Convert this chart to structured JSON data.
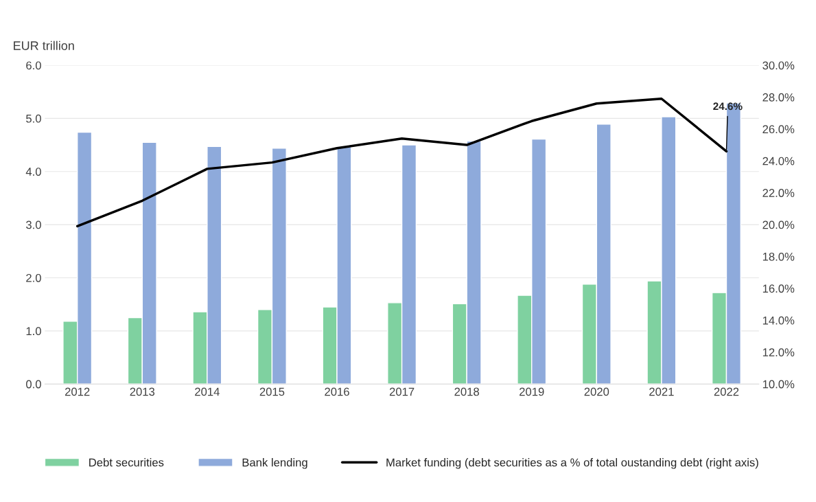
{
  "chart_data": {
    "type": "bar",
    "ylabel": "EUR trillion",
    "categories": [
      "2012",
      "2013",
      "2014",
      "2015",
      "2016",
      "2017",
      "2018",
      "2019",
      "2020",
      "2021",
      "2022"
    ],
    "series": [
      {
        "name": "Debt securities",
        "color": "#7fd1a0",
        "values": [
          1.18,
          1.25,
          1.36,
          1.4,
          1.45,
          1.53,
          1.51,
          1.67,
          1.88,
          1.94,
          1.72
        ]
      },
      {
        "name": "Bank lending",
        "color": "#8eaadb",
        "values": [
          4.74,
          4.55,
          4.47,
          4.44,
          4.47,
          4.5,
          4.57,
          4.61,
          4.89,
          5.03,
          5.29
        ]
      },
      {
        "name": "Market funding (debt securities as a % of total oustanding debt (right axis)",
        "type": "line",
        "axis": "y2",
        "color": "#000000",
        "values": [
          19.9,
          21.5,
          23.5,
          23.9,
          24.8,
          25.4,
          25.0,
          26.5,
          27.6,
          27.9,
          24.6
        ],
        "value_labels": [
          null,
          null,
          null,
          null,
          null,
          null,
          null,
          null,
          null,
          null,
          "24.6%"
        ]
      }
    ],
    "ylim": [
      0,
      6
    ],
    "yticks": [
      {
        "value": 0,
        "label": "0.0"
      },
      {
        "value": 1,
        "label": "1.0"
      },
      {
        "value": 2,
        "label": "2.0"
      },
      {
        "value": 3,
        "label": "3.0"
      },
      {
        "value": 4,
        "label": "4.0"
      },
      {
        "value": 5,
        "label": "5.0"
      },
      {
        "value": 6,
        "label": "6.0"
      }
    ],
    "y2lim": [
      10,
      30
    ],
    "y2ticks": [
      {
        "value": 10,
        "label": "10.0%"
      },
      {
        "value": 12,
        "label": "12.0%"
      },
      {
        "value": 14,
        "label": "14.0%"
      },
      {
        "value": 16,
        "label": "16.0%"
      },
      {
        "value": 18,
        "label": "18.0%"
      },
      {
        "value": 20,
        "label": "20.0%"
      },
      {
        "value": 22,
        "label": "22.0%"
      },
      {
        "value": 24,
        "label": "24.0%"
      },
      {
        "value": 26,
        "label": "26.0%"
      },
      {
        "value": 28,
        "label": "28.0%"
      },
      {
        "value": 30,
        "label": "30.0%"
      }
    ],
    "grid": "y",
    "legend": "bottom",
    "marker": "none",
    "line_style": "solid"
  }
}
